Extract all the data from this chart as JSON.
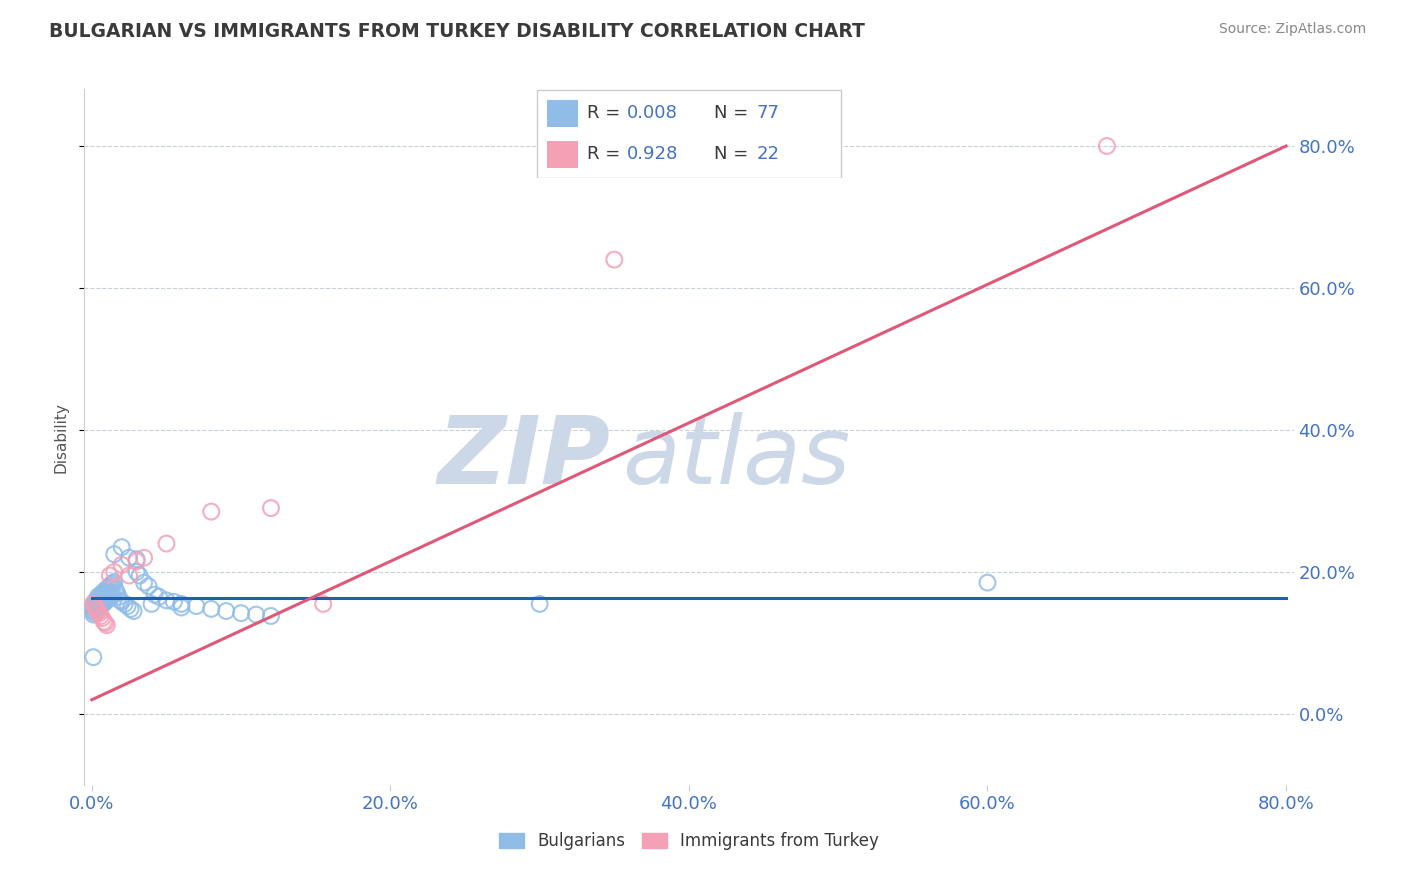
{
  "title": "BULGARIAN VS IMMIGRANTS FROM TURKEY DISABILITY CORRELATION CHART",
  "source": "Source: ZipAtlas.com",
  "ylabel": "Disability",
  "xmin": 0.0,
  "xmax": 0.8,
  "ymin": -0.1,
  "ymax": 0.88,
  "watermark_zip": "ZIP",
  "watermark_atlas": "atlas",
  "blue_line_color": "#2060b0",
  "pink_line_color": "#e05878",
  "blue_dot_color": "#90bce8",
  "pink_dot_color": "#f4a0b5",
  "grid_color": "#c8cfd8",
  "title_color": "#3a3a3a",
  "source_color": "#888888",
  "watermark_color": "#ccd8e8",
  "tick_label_color": "#4472c4",
  "legend_R_color": "#4472c4",
  "legend_N_color": "#4472c4",
  "legend_text_color": "#3a3a3a",
  "yticks": [
    0.0,
    0.2,
    0.4,
    0.6,
    0.8
  ],
  "xticks": [
    0.0,
    0.2,
    0.4,
    0.6,
    0.8
  ],
  "bulgarians_x": [
    0.001,
    0.001,
    0.001,
    0.002,
    0.002,
    0.002,
    0.003,
    0.003,
    0.003,
    0.004,
    0.004,
    0.005,
    0.005,
    0.006,
    0.006,
    0.007,
    0.007,
    0.008,
    0.008,
    0.009,
    0.009,
    0.01,
    0.01,
    0.011,
    0.011,
    0.012,
    0.012,
    0.013,
    0.014,
    0.015,
    0.016,
    0.017,
    0.018,
    0.019,
    0.02,
    0.022,
    0.024,
    0.026,
    0.028,
    0.03,
    0.032,
    0.035,
    0.038,
    0.042,
    0.045,
    0.05,
    0.055,
    0.06,
    0.07,
    0.08,
    0.09,
    0.1,
    0.11,
    0.12,
    0.001,
    0.002,
    0.003,
    0.004,
    0.005,
    0.006,
    0.007,
    0.008,
    0.009,
    0.01,
    0.011,
    0.012,
    0.013,
    0.014,
    0.015,
    0.02,
    0.025,
    0.03,
    0.04,
    0.06,
    0.3,
    0.6,
    0.001
  ],
  "bulgarians_y": [
    0.155,
    0.15,
    0.145,
    0.158,
    0.152,
    0.148,
    0.16,
    0.155,
    0.15,
    0.165,
    0.158,
    0.162,
    0.155,
    0.168,
    0.16,
    0.17,
    0.163,
    0.172,
    0.165,
    0.174,
    0.167,
    0.176,
    0.168,
    0.178,
    0.17,
    0.18,
    0.172,
    0.182,
    0.184,
    0.186,
    0.175,
    0.17,
    0.165,
    0.16,
    0.158,
    0.155,
    0.152,
    0.148,
    0.145,
    0.2,
    0.195,
    0.185,
    0.18,
    0.168,
    0.165,
    0.16,
    0.158,
    0.155,
    0.152,
    0.148,
    0.145,
    0.142,
    0.14,
    0.138,
    0.14,
    0.142,
    0.145,
    0.148,
    0.15,
    0.152,
    0.154,
    0.156,
    0.158,
    0.16,
    0.162,
    0.164,
    0.166,
    0.168,
    0.225,
    0.235,
    0.22,
    0.218,
    0.155,
    0.15,
    0.155,
    0.185,
    0.08
  ],
  "turkey_x": [
    0.001,
    0.002,
    0.003,
    0.004,
    0.005,
    0.006,
    0.007,
    0.008,
    0.009,
    0.01,
    0.012,
    0.015,
    0.02,
    0.025,
    0.03,
    0.035,
    0.05,
    0.08,
    0.12,
    0.155,
    0.35,
    0.68
  ],
  "turkey_y": [
    0.155,
    0.152,
    0.148,
    0.145,
    0.142,
    0.138,
    0.135,
    0.13,
    0.128,
    0.125,
    0.195,
    0.2,
    0.21,
    0.195,
    0.215,
    0.22,
    0.24,
    0.285,
    0.29,
    0.155,
    0.64,
    0.8
  ]
}
